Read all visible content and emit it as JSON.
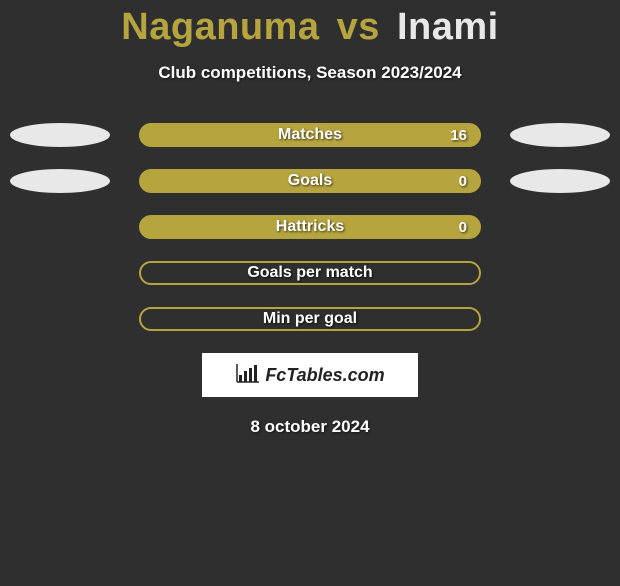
{
  "title": {
    "player1": "Naganuma",
    "vs": "vs",
    "player2": "Inami",
    "player1_color": "#b6a43e",
    "player2_color": "#e8e8e8"
  },
  "subtitle": "Club competitions, Season 2023/2024",
  "ellipse_colors": {
    "left": "#e8e8e8",
    "right": "#e8e8e8"
  },
  "bar_style": {
    "fill_color": "#b6a43e",
    "border_color": "#b6a43e",
    "empty_background": "transparent"
  },
  "rows": [
    {
      "label": "Matches",
      "value": "16",
      "show_value": true,
      "show_left_ellipse": true,
      "show_right_ellipse": true,
      "filled": true
    },
    {
      "label": "Goals",
      "value": "0",
      "show_value": true,
      "show_left_ellipse": true,
      "show_right_ellipse": true,
      "filled": true
    },
    {
      "label": "Hattricks",
      "value": "0",
      "show_value": true,
      "show_left_ellipse": false,
      "show_right_ellipse": false,
      "filled": true
    },
    {
      "label": "Goals per match",
      "value": "",
      "show_value": false,
      "show_left_ellipse": false,
      "show_right_ellipse": false,
      "filled": false
    },
    {
      "label": "Min per goal",
      "value": "",
      "show_value": false,
      "show_left_ellipse": false,
      "show_right_ellipse": false,
      "filled": false
    }
  ],
  "logo": {
    "text": "FcTables.com",
    "icon_name": "bar-chart-icon"
  },
  "date": "8 october 2024",
  "background_color": "#2f2f2f"
}
